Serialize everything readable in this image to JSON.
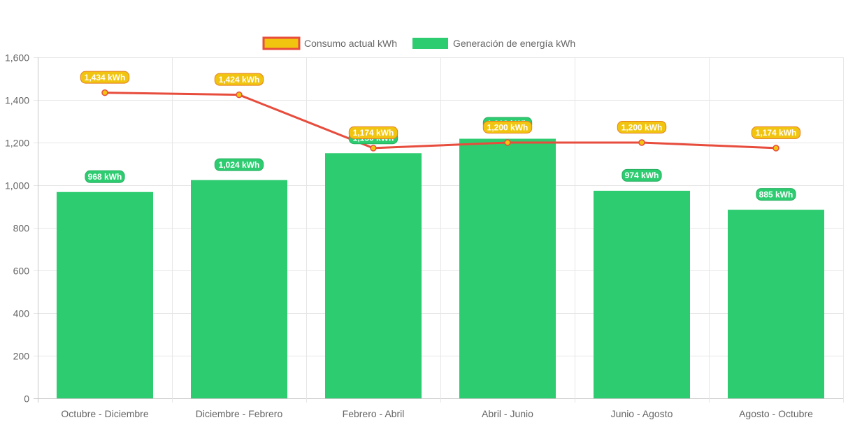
{
  "chart_data": {
    "type": "bar",
    "categories": [
      "Octubre - Diciembre",
      "Diciembre - Febrero",
      "Febrero - Abril",
      "Abril - Junio",
      "Junio - Agosto",
      "Agosto - Octubre"
    ],
    "series": [
      {
        "name": "Consumo actual kWh",
        "type": "line",
        "values": [
          1434,
          1424,
          1174,
          1200,
          1200,
          1174
        ],
        "labels": [
          "1,434 kWh",
          "1,424 kWh",
          "1,174 kWh",
          "1,200 kWh",
          "1,200 kWh",
          "1,174 kWh"
        ],
        "color": "#e74c3c",
        "fill_color": "#f1c40f"
      },
      {
        "name": "Generación de energía kWh",
        "type": "bar",
        "values": [
          968,
          1024,
          1150,
          1218,
          974,
          885
        ],
        "labels": [
          "968 kWh",
          "1,024 kWh",
          "1,150 kWh",
          "1,218 kWh",
          "974 kWh",
          "885 kWh"
        ],
        "color": "#2ecc71"
      }
    ],
    "yticks": [
      "0",
      "200",
      "400",
      "600",
      "800",
      "1,000",
      "1,200",
      "1,400",
      "1,600"
    ],
    "ylim": [
      0,
      1600
    ],
    "grid": true,
    "legend_position": "top"
  }
}
